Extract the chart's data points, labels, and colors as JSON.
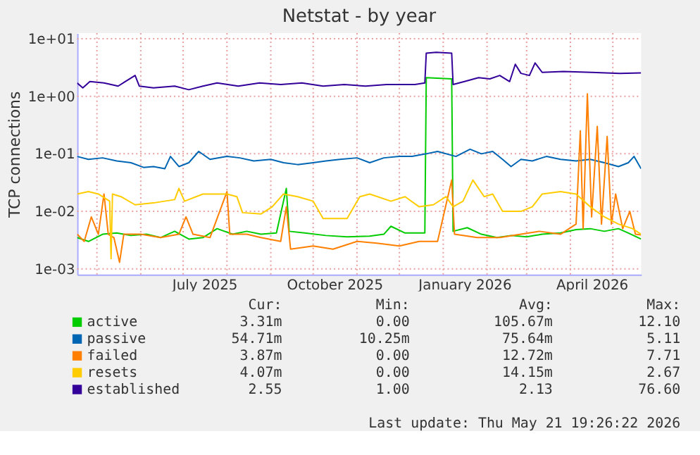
{
  "chart_data": {
    "type": "line",
    "title": "Netstat - by year",
    "ylabel": "TCP connections",
    "log": true,
    "grid": true,
    "legend": "bottom",
    "ylim": [
      0.0008,
      12.5
    ],
    "yticks": [
      {
        "value": 0.001,
        "label": "1e-03"
      },
      {
        "value": 0.01,
        "label": "1e-02"
      },
      {
        "value": 0.1,
        "label": "1e-01"
      },
      {
        "value": 1,
        "label": "1e+00"
      },
      {
        "value": 10,
        "label": "1e+01"
      }
    ],
    "xlim": [
      "2025-04-17",
      "2026-05-21"
    ],
    "xticks": [
      {
        "value": "2025-05-01",
        "label": null
      },
      {
        "value": "2025-06-01",
        "label": null
      },
      {
        "value": "2025-07-01",
        "label": null
      },
      {
        "value": "2025-07-16",
        "label": "July 2025"
      },
      {
        "value": "2025-08-01",
        "label": null
      },
      {
        "value": "2025-09-01",
        "label": null
      },
      {
        "value": "2025-10-01",
        "label": null
      },
      {
        "value": "2025-10-16",
        "label": "October 2025"
      },
      {
        "value": "2025-11-01",
        "label": null
      },
      {
        "value": "2025-12-01",
        "label": null
      },
      {
        "value": "2026-01-01",
        "label": null
      },
      {
        "value": "2026-01-16",
        "label": "January 2026"
      },
      {
        "value": "2026-02-01",
        "label": null
      },
      {
        "value": "2026-03-01",
        "label": null
      },
      {
        "value": "2026-04-01",
        "label": null
      },
      {
        "value": "2026-04-16",
        "label": "April 2026"
      },
      {
        "value": "2026-05-01",
        "label": null
      }
    ],
    "series": [
      {
        "name": "active",
        "color": "#00cc00",
        "x": [
          "2025-04-17",
          "2025-04-25",
          "2025-05-05",
          "2025-05-15",
          "2025-05-25",
          "2025-06-05",
          "2025-06-15",
          "2025-06-25",
          "2025-07-05",
          "2025-07-15",
          "2025-07-25",
          "2025-08-05",
          "2025-08-15",
          "2025-08-25",
          "2025-09-05",
          "2025-09-12",
          "2025-09-14",
          "2025-09-25",
          "2025-10-10",
          "2025-10-25",
          "2025-11-10",
          "2025-11-20",
          "2025-11-25",
          "2025-12-05",
          "2025-12-19",
          "2025-12-20",
          "2026-01-07",
          "2026-01-08",
          "2026-01-18",
          "2026-01-28",
          "2026-02-08",
          "2026-02-18",
          "2026-03-01",
          "2026-03-12",
          "2026-03-25",
          "2026-04-05",
          "2026-04-15",
          "2026-04-25",
          "2026-05-05",
          "2026-05-12",
          "2026-05-21"
        ],
        "values": [
          0.0035,
          0.003,
          0.004,
          0.0042,
          0.0038,
          0.004,
          0.0035,
          0.0045,
          0.0033,
          0.0035,
          0.005,
          0.004,
          0.0045,
          0.004,
          0.0042,
          0.025,
          0.0045,
          0.0042,
          0.0038,
          0.0036,
          0.0037,
          0.004,
          0.0055,
          0.0042,
          0.0042,
          2.1,
          2.0,
          0.0045,
          0.0052,
          0.004,
          0.0035,
          0.0038,
          0.0036,
          0.004,
          0.0042,
          0.0048,
          0.005,
          0.0045,
          0.005,
          0.0042,
          0.0033
        ]
      },
      {
        "name": "passive",
        "color": "#0066b3",
        "x": [
          "2025-04-17",
          "2025-04-25",
          "2025-05-05",
          "2025-05-15",
          "2025-05-25",
          "2025-06-03",
          "2025-06-10",
          "2025-06-18",
          "2025-06-22",
          "2025-06-28",
          "2025-07-05",
          "2025-07-12",
          "2025-07-20",
          "2025-08-01",
          "2025-08-10",
          "2025-08-20",
          "2025-09-01",
          "2025-09-10",
          "2025-09-20",
          "2025-10-01",
          "2025-10-10",
          "2025-10-20",
          "2025-11-01",
          "2025-11-10",
          "2025-11-20",
          "2025-12-01",
          "2025-12-10",
          "2025-12-20",
          "2025-12-28",
          "2026-01-10",
          "2026-01-20",
          "2026-01-28",
          "2026-02-05",
          "2026-02-12",
          "2026-02-18",
          "2026-02-25",
          "2026-03-05",
          "2026-03-15",
          "2026-03-25",
          "2026-04-05",
          "2026-04-15",
          "2026-04-25",
          "2026-05-05",
          "2026-05-12",
          "2026-05-16",
          "2026-05-21"
        ],
        "values": [
          0.09,
          0.08,
          0.085,
          0.075,
          0.07,
          0.058,
          0.06,
          0.055,
          0.09,
          0.06,
          0.07,
          0.11,
          0.08,
          0.09,
          0.085,
          0.075,
          0.08,
          0.07,
          0.065,
          0.07,
          0.075,
          0.08,
          0.085,
          0.07,
          0.085,
          0.09,
          0.09,
          0.1,
          0.11,
          0.09,
          0.12,
          0.1,
          0.11,
          0.08,
          0.06,
          0.08,
          0.075,
          0.09,
          0.08,
          0.075,
          0.08,
          0.07,
          0.06,
          0.07,
          0.09,
          0.055
        ]
      },
      {
        "name": "failed",
        "color": "#ff8000",
        "x": [
          "2025-04-17",
          "2025-04-22",
          "2025-04-27",
          "2025-05-02",
          "2025-05-06",
          "2025-05-09",
          "2025-05-13",
          "2025-05-17",
          "2025-05-20",
          "2025-06-01",
          "2025-06-15",
          "2025-06-28",
          "2025-07-03",
          "2025-07-08",
          "2025-07-20",
          "2025-08-01",
          "2025-08-03",
          "2025-08-15",
          "2025-08-25",
          "2025-09-08",
          "2025-09-12",
          "2025-09-15",
          "2025-10-01",
          "2025-10-15",
          "2025-11-01",
          "2025-11-15",
          "2025-12-01",
          "2025-12-15",
          "2025-12-28",
          "2026-01-07",
          "2026-01-09",
          "2026-01-25",
          "2026-02-10",
          "2026-02-25",
          "2026-03-10",
          "2026-03-25",
          "2026-04-05",
          "2026-04-08",
          "2026-04-10",
          "2026-04-13",
          "2026-04-16",
          "2026-04-20",
          "2026-04-23",
          "2026-04-27",
          "2026-04-30",
          "2026-05-03",
          "2026-05-08",
          "2026-05-13",
          "2026-05-17",
          "2026-05-21"
        ],
        "values": [
          0.004,
          0.003,
          0.008,
          0.004,
          0.02,
          0.004,
          0.0035,
          0.0013,
          0.004,
          0.004,
          0.0035,
          0.004,
          0.008,
          0.004,
          0.0035,
          0.022,
          0.004,
          0.004,
          0.0035,
          0.003,
          0.012,
          0.0022,
          0.0025,
          0.0022,
          0.003,
          0.0028,
          0.0025,
          0.003,
          0.003,
          0.035,
          0.004,
          0.0035,
          0.0035,
          0.004,
          0.0045,
          0.004,
          0.006,
          0.25,
          0.005,
          1.1,
          0.008,
          0.3,
          0.006,
          0.2,
          0.006,
          0.02,
          0.005,
          0.01,
          0.004,
          0.0039
        ]
      },
      {
        "name": "resets",
        "color": "#ffcc00",
        "x": [
          "2025-04-17",
          "2025-04-25",
          "2025-05-02",
          "2025-05-10",
          "2025-05-11",
          "2025-05-12",
          "2025-05-18",
          "2025-05-28",
          "2025-06-10",
          "2025-06-25",
          "2025-06-28",
          "2025-07-02",
          "2025-07-15",
          "2025-08-01",
          "2025-08-08",
          "2025-08-12",
          "2025-08-25",
          "2025-09-02",
          "2025-09-10",
          "2025-09-20",
          "2025-10-01",
          "2025-10-08",
          "2025-10-25",
          "2025-11-03",
          "2025-11-10",
          "2025-11-25",
          "2025-12-05",
          "2025-12-15",
          "2025-12-25",
          "2026-01-03",
          "2026-01-08",
          "2026-01-15",
          "2026-01-22",
          "2026-01-30",
          "2026-02-05",
          "2026-02-12",
          "2026-02-25",
          "2026-03-05",
          "2026-03-12",
          "2026-03-25",
          "2026-04-05",
          "2026-04-15",
          "2026-04-25",
          "2026-05-05",
          "2026-05-15",
          "2026-05-21"
        ],
        "values": [
          0.02,
          0.022,
          0.02,
          0.015,
          0.0015,
          0.02,
          0.018,
          0.013,
          0.014,
          0.016,
          0.025,
          0.015,
          0.02,
          0.02,
          0.018,
          0.0095,
          0.009,
          0.012,
          0.02,
          0.018,
          0.015,
          0.0075,
          0.0075,
          0.018,
          0.02,
          0.015,
          0.018,
          0.012,
          0.013,
          0.018,
          0.012,
          0.015,
          0.035,
          0.018,
          0.02,
          0.01,
          0.01,
          0.012,
          0.02,
          0.022,
          0.02,
          0.012,
          0.008,
          0.006,
          0.005,
          0.004
        ]
      },
      {
        "name": "established",
        "color": "#330099",
        "x": [
          "2025-04-17",
          "2025-04-21",
          "2025-04-26",
          "2025-05-06",
          "2025-05-16",
          "2025-05-21",
          "2025-05-28",
          "2025-05-31",
          "2025-06-10",
          "2025-06-25",
          "2025-07-05",
          "2025-07-15",
          "2025-07-25",
          "2025-08-09",
          "2025-08-24",
          "2025-09-08",
          "2025-09-23",
          "2025-10-08",
          "2025-10-23",
          "2025-11-07",
          "2025-11-22",
          "2025-12-12",
          "2025-12-19",
          "2025-12-20",
          "2025-12-27",
          "2026-01-07",
          "2026-01-08",
          "2026-01-16",
          "2026-01-26",
          "2026-02-03",
          "2026-02-10",
          "2026-02-17",
          "2026-02-21",
          "2026-02-25",
          "2026-03-03",
          "2026-03-07",
          "2026-03-12",
          "2026-03-27",
          "2026-04-16",
          "2026-05-06",
          "2026-05-21"
        ],
        "values": [
          1.7,
          1.4,
          1.8,
          1.7,
          1.5,
          1.8,
          2.3,
          1.5,
          1.4,
          1.5,
          1.3,
          1.5,
          1.7,
          1.5,
          1.7,
          1.6,
          1.7,
          1.5,
          1.6,
          1.5,
          1.6,
          1.6,
          1.7,
          5.6,
          5.8,
          5.6,
          1.6,
          1.8,
          2.1,
          2.0,
          2.3,
          1.8,
          3.6,
          2.5,
          2.3,
          3.8,
          2.6,
          2.7,
          2.6,
          2.5,
          2.55
        ]
      }
    ],
    "annotations": [
      "Cur:",
      "Min:",
      "Avg:",
      "Max:",
      "3.31m",
      "0.00",
      "105.67m",
      "12.10",
      "54.71m",
      "10.25m",
      "75.64m",
      "5.11",
      "3.87m",
      "0.00",
      "12.72m",
      "7.71",
      "4.07m",
      "0.00",
      "14.15m",
      "2.67",
      "2.55",
      "1.00",
      "2.13",
      "76.60",
      "Last update: Thu May 21 19:26:22 2026"
    ]
  }
}
